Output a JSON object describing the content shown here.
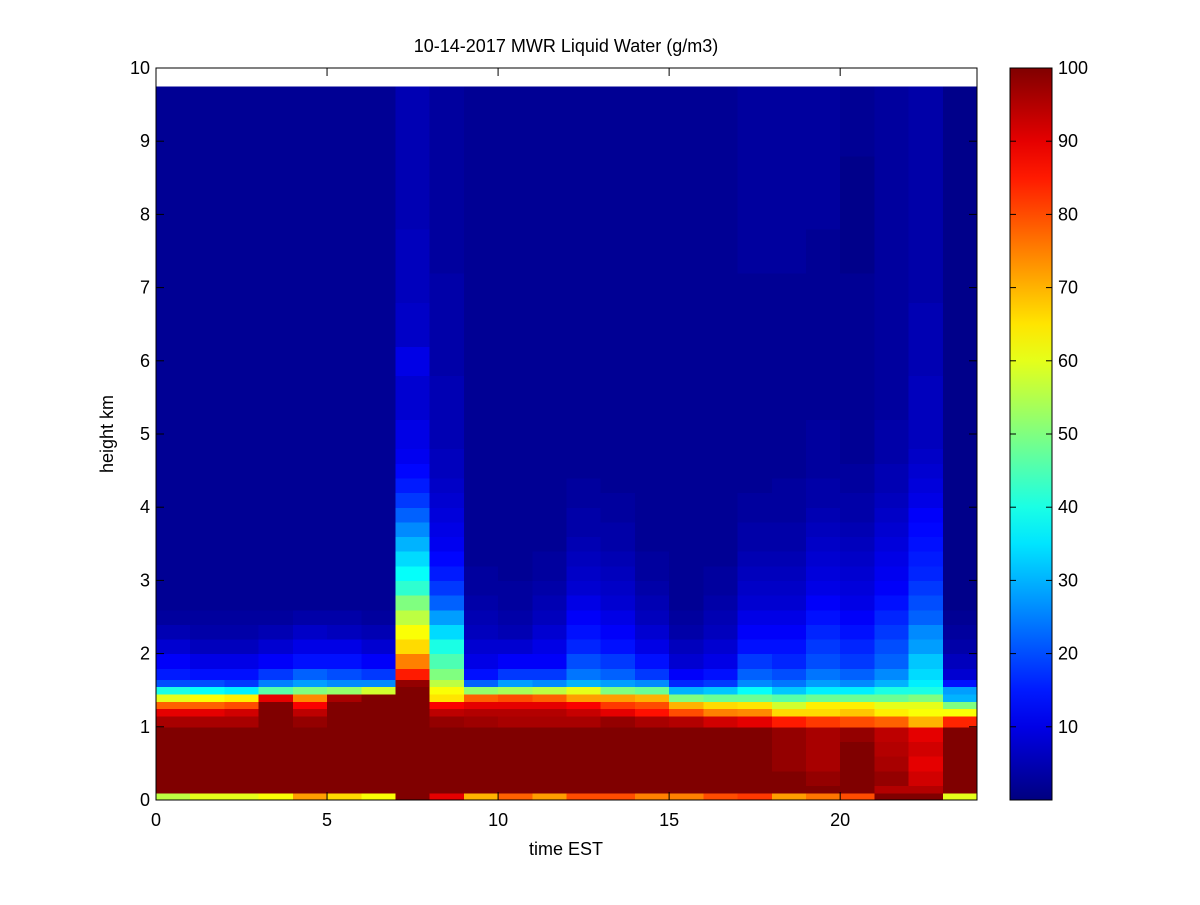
{
  "chart_data": {
    "type": "heatmap",
    "title": "10-14-2017 MWR Liquid Water (g/m3)",
    "xlabel": "time EST",
    "ylabel": "height km",
    "xlim": [
      0,
      24
    ],
    "ylim": [
      0,
      10
    ],
    "xticks": [
      "0",
      "5",
      "10",
      "15",
      "20"
    ],
    "yticks": [
      "0",
      "1",
      "2",
      "3",
      "4",
      "5",
      "6",
      "7",
      "8",
      "9",
      "10"
    ],
    "colormap": "jet",
    "clim": [
      0,
      100
    ],
    "colorbar_ticks": [
      "10",
      "20",
      "30",
      "40",
      "50",
      "60",
      "70",
      "80",
      "90",
      "100"
    ],
    "x": [
      0.5,
      1.5,
      2.5,
      3.5,
      4.5,
      5.5,
      6.5,
      7.5,
      8.5,
      9.5,
      10.5,
      11.5,
      12.5,
      13.5,
      14.5,
      15.5,
      16.5,
      17.5,
      18.5,
      19.5,
      20.5,
      21.5,
      22.5,
      23.5
    ],
    "y": [
      0.05,
      0.15,
      0.3,
      0.5,
      0.7,
      0.9,
      1.1,
      1.225,
      1.325,
      1.425,
      1.525,
      1.625,
      1.75,
      1.9,
      2.1,
      2.3,
      2.5,
      2.7,
      2.9,
      3.1,
      3.3,
      3.5,
      3.7,
      3.9,
      4.1,
      4.3,
      4.5,
      4.7,
      5.0,
      5.5,
      6.0,
      6.5,
      7.0,
      7.5,
      8.0,
      8.5,
      9.0,
      9.5
    ],
    "x_edges": [
      0,
      1,
      2,
      3,
      4,
      5,
      6,
      7,
      8,
      9,
      10,
      11,
      12,
      13,
      14,
      15,
      16,
      17,
      18,
      19,
      20,
      21,
      22,
      23,
      24
    ],
    "y_edges": [
      0,
      0.1,
      0.2,
      0.4,
      0.6,
      0.8,
      1.0,
      1.15,
      1.25,
      1.35,
      1.45,
      1.55,
      1.65,
      1.8,
      2.0,
      2.2,
      2.4,
      2.6,
      2.8,
      3.0,
      3.2,
      3.4,
      3.6,
      3.8,
      4.0,
      4.2,
      4.4,
      4.6,
      4.8,
      5.2,
      5.8,
      6.2,
      6.8,
      7.2,
      7.8,
      8.2,
      8.8,
      9.2,
      9.75
    ],
    "z": [
      [
        56,
        60,
        60,
        62,
        72,
        66,
        62,
        100,
        90,
        70,
        78,
        72,
        80,
        80,
        75,
        75,
        80,
        82,
        72,
        76,
        80,
        100,
        100,
        60
      ],
      [
        100,
        100,
        100,
        100,
        100,
        100,
        100,
        100,
        100,
        100,
        100,
        100,
        100,
        100,
        100,
        100,
        100,
        100,
        100,
        100,
        100,
        95,
        95,
        100
      ],
      [
        100,
        100,
        100,
        100,
        100,
        100,
        100,
        100,
        100,
        100,
        100,
        100,
        100,
        100,
        100,
        100,
        100,
        100,
        100,
        98,
        100,
        98,
        92,
        100
      ],
      [
        100,
        100,
        100,
        100,
        100,
        100,
        100,
        100,
        100,
        100,
        100,
        100,
        100,
        100,
        100,
        100,
        100,
        100,
        98,
        96,
        100,
        96,
        90,
        100
      ],
      [
        100,
        100,
        100,
        100,
        100,
        100,
        100,
        100,
        100,
        100,
        100,
        100,
        100,
        100,
        100,
        100,
        100,
        100,
        98,
        96,
        100,
        95,
        92,
        100
      ],
      [
        100,
        100,
        100,
        100,
        100,
        100,
        100,
        100,
        100,
        100,
        100,
        100,
        100,
        100,
        100,
        100,
        100,
        100,
        98,
        96,
        98,
        94,
        90,
        100
      ],
      [
        96,
        96,
        96,
        100,
        98,
        100,
        100,
        100,
        98,
        97,
        96,
        96,
        96,
        98,
        96,
        95,
        92,
        90,
        85,
        82,
        80,
        78,
        70,
        84
      ],
      [
        90,
        90,
        92,
        100,
        94,
        100,
        100,
        100,
        94,
        95,
        95,
        95,
        93,
        90,
        86,
        80,
        75,
        74,
        66,
        66,
        68,
        64,
        62,
        62
      ],
      [
        78,
        78,
        80,
        100,
        88,
        100,
        100,
        100,
        88,
        90,
        90,
        90,
        88,
        82,
        80,
        70,
        66,
        65,
        58,
        64,
        64,
        60,
        60,
        50
      ],
      [
        60,
        62,
        64,
        90,
        74,
        96,
        100,
        100,
        65,
        78,
        80,
        78,
        72,
        72,
        70,
        50,
        48,
        48,
        46,
        48,
        48,
        48,
        50,
        30
      ],
      [
        40,
        38,
        36,
        46,
        50,
        52,
        58,
        100,
        62,
        52,
        54,
        56,
        60,
        50,
        48,
        30,
        32,
        38,
        32,
        36,
        36,
        40,
        40,
        28
      ],
      [
        20,
        20,
        18,
        25,
        28,
        26,
        26,
        98,
        56,
        22,
        28,
        26,
        30,
        28,
        26,
        16,
        18,
        26,
        24,
        28,
        26,
        30,
        36,
        14
      ],
      [
        15,
        14,
        14,
        18,
        22,
        20,
        18,
        85,
        50,
        14,
        18,
        18,
        24,
        22,
        18,
        12,
        14,
        22,
        20,
        24,
        22,
        26,
        34,
        8
      ],
      [
        12,
        10,
        10,
        12,
        14,
        14,
        12,
        75,
        45,
        10,
        12,
        12,
        20,
        18,
        14,
        8,
        10,
        18,
        16,
        20,
        18,
        22,
        32,
        6
      ],
      [
        8,
        6,
        6,
        8,
        10,
        10,
        8,
        66,
        40,
        8,
        8,
        10,
        16,
        14,
        10,
        6,
        8,
        14,
        14,
        18,
        16,
        20,
        28,
        4
      ],
      [
        5,
        4,
        4,
        5,
        7,
        6,
        5,
        62,
        34,
        6,
        5,
        8,
        14,
        12,
        8,
        4,
        6,
        12,
        12,
        16,
        14,
        18,
        26,
        3
      ],
      [
        3,
        3,
        3,
        3,
        4,
        4,
        3,
        56,
        28,
        5,
        4,
        6,
        12,
        10,
        6,
        3,
        5,
        10,
        10,
        14,
        12,
        16,
        22,
        2
      ],
      [
        2,
        2,
        2,
        2,
        2,
        2,
        2,
        50,
        22,
        4,
        3,
        5,
        10,
        8,
        5,
        2,
        4,
        8,
        8,
        12,
        10,
        14,
        20,
        1
      ],
      [
        2,
        2,
        2,
        2,
        2,
        2,
        2,
        42,
        18,
        3,
        3,
        4,
        8,
        7,
        4,
        2,
        3,
        7,
        7,
        10,
        9,
        12,
        18,
        1
      ],
      [
        2,
        2,
        2,
        2,
        2,
        2,
        2,
        38,
        15,
        3,
        2,
        3,
        7,
        6,
        3,
        2,
        3,
        6,
        6,
        9,
        8,
        11,
        16,
        1
      ],
      [
        2,
        2,
        2,
        2,
        2,
        2,
        2,
        34,
        13,
        2,
        2,
        3,
        6,
        5,
        3,
        2,
        2,
        5,
        5,
        8,
        7,
        10,
        15,
        1
      ],
      [
        2,
        2,
        2,
        2,
        2,
        2,
        2,
        30,
        11,
        2,
        2,
        2,
        5,
        4,
        2,
        2,
        2,
        4,
        4,
        7,
        6,
        9,
        14,
        1
      ],
      [
        2,
        2,
        2,
        2,
        2,
        2,
        2,
        26,
        10,
        2,
        2,
        2,
        4,
        4,
        2,
        2,
        2,
        4,
        4,
        6,
        5,
        8,
        13,
        1
      ],
      [
        2,
        2,
        2,
        2,
        2,
        2,
        2,
        22,
        9,
        2,
        2,
        2,
        4,
        3,
        2,
        2,
        2,
        3,
        3,
        5,
        4,
        7,
        12,
        1
      ],
      [
        2,
        2,
        2,
        2,
        2,
        2,
        2,
        18,
        8,
        2,
        2,
        2,
        3,
        3,
        2,
        2,
        2,
        3,
        3,
        4,
        4,
        6,
        10,
        1
      ],
      [
        2,
        2,
        2,
        2,
        2,
        2,
        2,
        15,
        7,
        2,
        2,
        2,
        3,
        2,
        2,
        2,
        2,
        2,
        3,
        4,
        3,
        5,
        9,
        1
      ],
      [
        2,
        2,
        2,
        2,
        2,
        2,
        2,
        13,
        6,
        2,
        2,
        2,
        2,
        2,
        2,
        2,
        2,
        2,
        2,
        3,
        3,
        5,
        8,
        1
      ],
      [
        2,
        2,
        2,
        2,
        2,
        2,
        2,
        11,
        6,
        2,
        2,
        2,
        2,
        2,
        2,
        2,
        2,
        2,
        2,
        3,
        2,
        4,
        7,
        1
      ],
      [
        2,
        2,
        2,
        2,
        2,
        2,
        2,
        10,
        5,
        2,
        2,
        2,
        2,
        2,
        2,
        2,
        2,
        2,
        2,
        3,
        2,
        4,
        6,
        1
      ],
      [
        2,
        2,
        2,
        2,
        2,
        2,
        2,
        8,
        5,
        2,
        2,
        2,
        2,
        2,
        2,
        2,
        2,
        2,
        2,
        2,
        2,
        3,
        6,
        1
      ],
      [
        2,
        2,
        2,
        2,
        2,
        2,
        2,
        10,
        4,
        2,
        2,
        2,
        2,
        2,
        2,
        2,
        2,
        2,
        2,
        2,
        2,
        3,
        5,
        1
      ],
      [
        2,
        2,
        2,
        2,
        2,
        2,
        2,
        7,
        4,
        2,
        2,
        2,
        2,
        2,
        2,
        2,
        2,
        2,
        2,
        2,
        2,
        3,
        5,
        1
      ],
      [
        2,
        2,
        2,
        2,
        2,
        2,
        2,
        6,
        4,
        2,
        2,
        2,
        2,
        2,
        2,
        2,
        2,
        2,
        2,
        2,
        2,
        3,
        4,
        1
      ],
      [
        2,
        2,
        2,
        2,
        2,
        2,
        2,
        6,
        3,
        2,
        2,
        2,
        2,
        2,
        2,
        2,
        2,
        3,
        3,
        2,
        1,
        3,
        4,
        1
      ],
      [
        2,
        2,
        2,
        2,
        2,
        2,
        2,
        5,
        3,
        2,
        2,
        2,
        2,
        2,
        2,
        2,
        2,
        3,
        3,
        3,
        1,
        3,
        4,
        1
      ],
      [
        2,
        2,
        2,
        2,
        2,
        2,
        2,
        5,
        3,
        2,
        2,
        2,
        2,
        2,
        2,
        2,
        2,
        3,
        3,
        3,
        1,
        3,
        4,
        1
      ],
      [
        2,
        2,
        2,
        2,
        2,
        2,
        2,
        5,
        3,
        2,
        2,
        2,
        2,
        2,
        2,
        2,
        2,
        3,
        3,
        3,
        2,
        3,
        4,
        1
      ],
      [
        2,
        2,
        2,
        2,
        2,
        2,
        2,
        5,
        3,
        2,
        2,
        2,
        2,
        2,
        2,
        2,
        2,
        3,
        3,
        3,
        2,
        3,
        4,
        1
      ]
    ]
  }
}
